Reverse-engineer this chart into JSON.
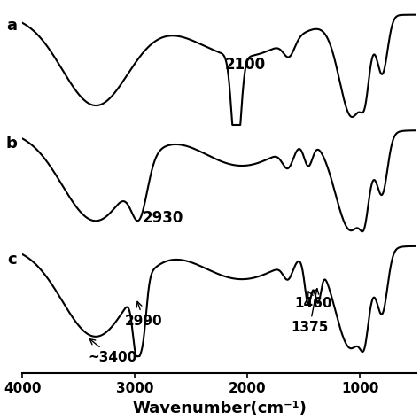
{
  "xlabel": "Wavenumber(cm⁻¹)",
  "xlim": [
    4000,
    500
  ],
  "xticklabels": [
    "4000",
    "3000",
    "2000",
    "1000"
  ],
  "xticks": [
    4000,
    3000,
    2000,
    1000
  ],
  "labels": [
    "a",
    "b",
    "c"
  ],
  "background_color": "#ffffff",
  "line_color": "#000000",
  "label_fontsize": 13,
  "annot_fontsize": 12,
  "xlabel_fontsize": 13
}
